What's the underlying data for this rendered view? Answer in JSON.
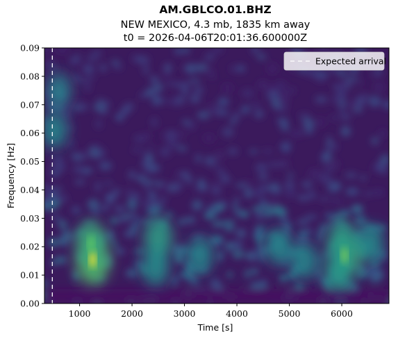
{
  "chart_data": {
    "type": "heatmap",
    "title": "AM.GBLCO.01.BHZ",
    "subtitle_lines": [
      "NEW MEXICO, 4.3 mb, 1835 km away",
      "t0 = 2026-04-06T20:01:36.600000Z"
    ],
    "xlabel": "Time [s]",
    "ylabel": "Frequency [Hz]",
    "xlim": [
      330,
      6900
    ],
    "ylim": [
      0.0,
      0.09
    ],
    "xticks": [
      1000,
      2000,
      3000,
      4000,
      5000,
      6000
    ],
    "xtick_labels": [
      "1000",
      "2000",
      "3000",
      "4000",
      "5000",
      "6000"
    ],
    "yticks": [
      0.0,
      0.01,
      0.02,
      0.03,
      0.04,
      0.05,
      0.06,
      0.07,
      0.08,
      0.09
    ],
    "ytick_labels": [
      "0.00",
      "0.01",
      "0.02",
      "0.03",
      "0.04",
      "0.05",
      "0.06",
      "0.07",
      "0.08",
      "0.09"
    ],
    "colormap": "viridis",
    "expected_arrival": {
      "time": 480,
      "label": "Expected arrival",
      "color": "#ffffff",
      "style": "dashed"
    },
    "legend_position": "upper right",
    "energy_hotspots": [
      {
        "time": 1250,
        "freq": 0.0155,
        "intensity": 1.0
      },
      {
        "time": 1220,
        "freq": 0.021,
        "intensity": 0.75
      },
      {
        "time": 2500,
        "freq": 0.023,
        "intensity": 0.55
      },
      {
        "time": 2450,
        "freq": 0.013,
        "intensity": 0.4
      },
      {
        "time": 6050,
        "freq": 0.017,
        "intensity": 0.8
      },
      {
        "time": 6000,
        "freq": 0.022,
        "intensity": 0.55
      },
      {
        "time": 5950,
        "freq": 0.011,
        "intensity": 0.5
      },
      {
        "time": 6550,
        "freq": 0.021,
        "intensity": 0.35
      },
      {
        "time": 520,
        "freq": 0.061,
        "intensity": 0.3
      },
      {
        "time": 600,
        "freq": 0.075,
        "intensity": 0.25
      },
      {
        "time": 3300,
        "freq": 0.017,
        "intensity": 0.3
      },
      {
        "time": 4800,
        "freq": 0.02,
        "intensity": 0.3
      },
      {
        "time": 5300,
        "freq": 0.015,
        "intensity": 0.3
      }
    ]
  }
}
